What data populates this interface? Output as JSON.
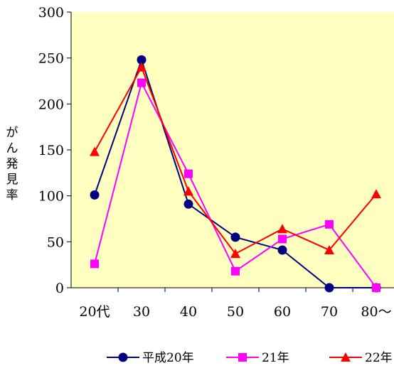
{
  "chart_data": {
    "type": "line",
    "categories": [
      "20代",
      "30",
      "40",
      "50",
      "60",
      "70",
      "80～"
    ],
    "ylabel": "がん発見率",
    "ylim": [
      0,
      300
    ],
    "yticks": [
      0,
      50,
      100,
      150,
      200,
      250,
      300
    ],
    "grid": false,
    "plot_background": "#FFFFC0",
    "legend_position": "bottom",
    "series": [
      {
        "name": "平成20年",
        "color": "#000080",
        "marker": "circle",
        "values": [
          101,
          248,
          91,
          55,
          41,
          0,
          0
        ]
      },
      {
        "name": "21年",
        "color": "#FF00FF",
        "marker": "square",
        "values": [
          26,
          223,
          124,
          18,
          53,
          69,
          0
        ]
      },
      {
        "name": "22年",
        "color": "#FF0000",
        "marker": "triangle",
        "values": [
          148,
          240,
          105,
          37,
          64,
          41,
          102
        ]
      }
    ]
  }
}
